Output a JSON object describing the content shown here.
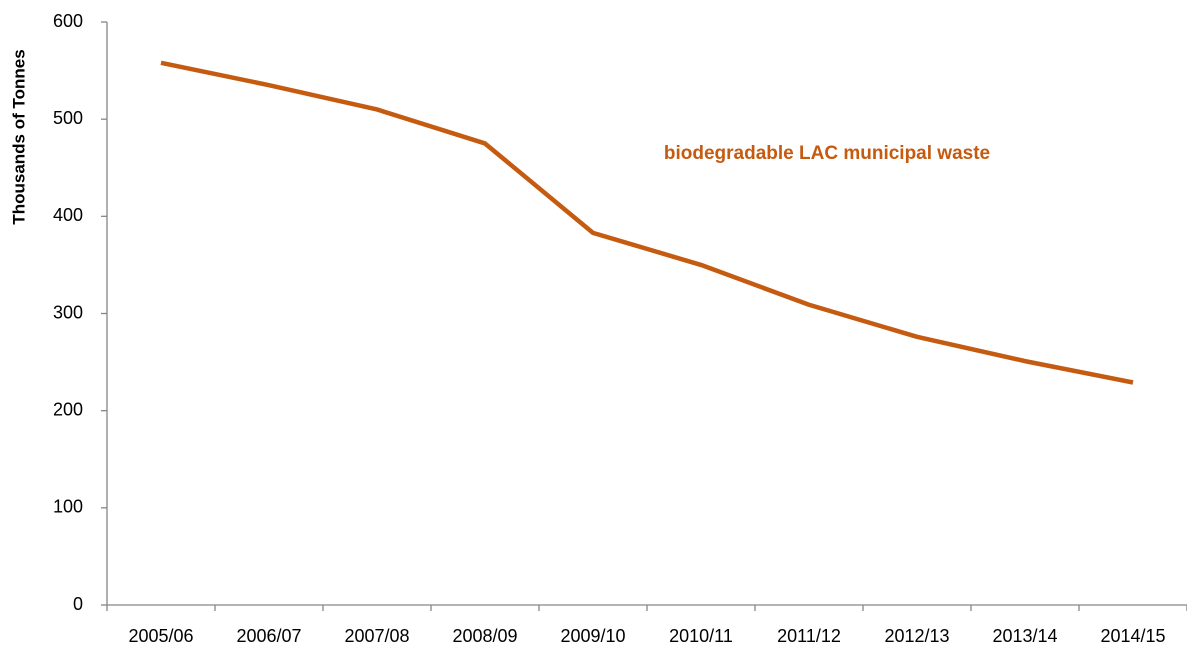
{
  "chart_data": {
    "type": "line",
    "y_label": "Thousands of Tonnes",
    "categories": [
      "2005/06",
      "2006/07",
      "2007/08",
      "2008/09",
      "2009/10",
      "2010/11",
      "2011/12",
      "2012/13",
      "2013/14",
      "2014/15"
    ],
    "series": [
      {
        "name": "biodegradable LAC municipal waste",
        "color": "#c55a11",
        "values": [
          558,
          535,
          510,
          475,
          383,
          350,
          309,
          276,
          251,
          229
        ]
      }
    ],
    "ylim": [
      0,
      600
    ],
    "yticks": [
      0,
      100,
      200,
      300,
      400,
      500,
      600
    ],
    "grid": false
  }
}
